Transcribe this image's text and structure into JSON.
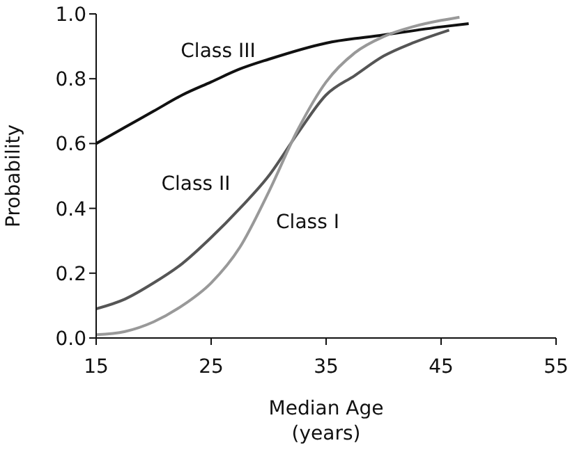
{
  "chart_data": {
    "type": "line",
    "xlabel": "Median Age\n(years)",
    "ylabel": "Probability",
    "xlim": [
      15,
      55
    ],
    "xticks": [
      15,
      25,
      35,
      45,
      55
    ],
    "ylim": [
      0,
      1
    ],
    "yticks": [
      {
        "value": 0,
        "label": "0.0"
      },
      {
        "value": 0.2,
        "label": "0.2"
      },
      {
        "value": 0.4,
        "label": "0.4"
      },
      {
        "value": 0.6,
        "label": "0.6"
      },
      {
        "value": 0.8,
        "label": "0.8"
      },
      {
        "value": 1,
        "label": "1.0"
      }
    ],
    "marker": "none",
    "line_style": "solid",
    "series": [
      {
        "name": "Class III",
        "color": "#111111",
        "x": [
          15,
          17.5,
          20,
          22.5,
          25,
          27.5,
          30,
          35,
          40,
          45,
          47.4
        ],
        "values": [
          0.6,
          0.65,
          0.7,
          0.75,
          0.79,
          0.83,
          0.86,
          0.91,
          0.935,
          0.96,
          0.97
        ]
      },
      {
        "name": "Class II",
        "color": "#555555",
        "x": [
          15,
          17.5,
          20,
          22.5,
          25,
          27.5,
          30,
          32.5,
          35,
          37.5,
          40,
          42.5,
          45.7
        ],
        "values": [
          0.09,
          0.12,
          0.17,
          0.23,
          0.31,
          0.4,
          0.5,
          0.63,
          0.75,
          0.81,
          0.87,
          0.91,
          0.95
        ]
      },
      {
        "name": "Class I",
        "color": "#999999",
        "x": [
          15,
          17.5,
          20,
          22.5,
          25,
          27.5,
          30,
          32.5,
          35,
          37.5,
          40,
          42.5,
          45,
          46.6
        ],
        "values": [
          0.01,
          0.02,
          0.05,
          0.1,
          0.17,
          0.28,
          0.45,
          0.64,
          0.79,
          0.88,
          0.93,
          0.96,
          0.98,
          0.99
        ]
      }
    ]
  }
}
